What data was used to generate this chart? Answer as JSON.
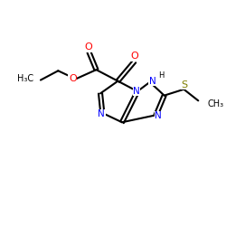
{
  "background_color": "#ffffff",
  "atom_colors": {
    "N": "#0000ff",
    "O": "#ff0000",
    "S": "#808000",
    "C": "#000000",
    "H": "#000000"
  },
  "font_size": 7.5,
  "figsize": [
    2.5,
    2.5
  ],
  "dpi": 100
}
